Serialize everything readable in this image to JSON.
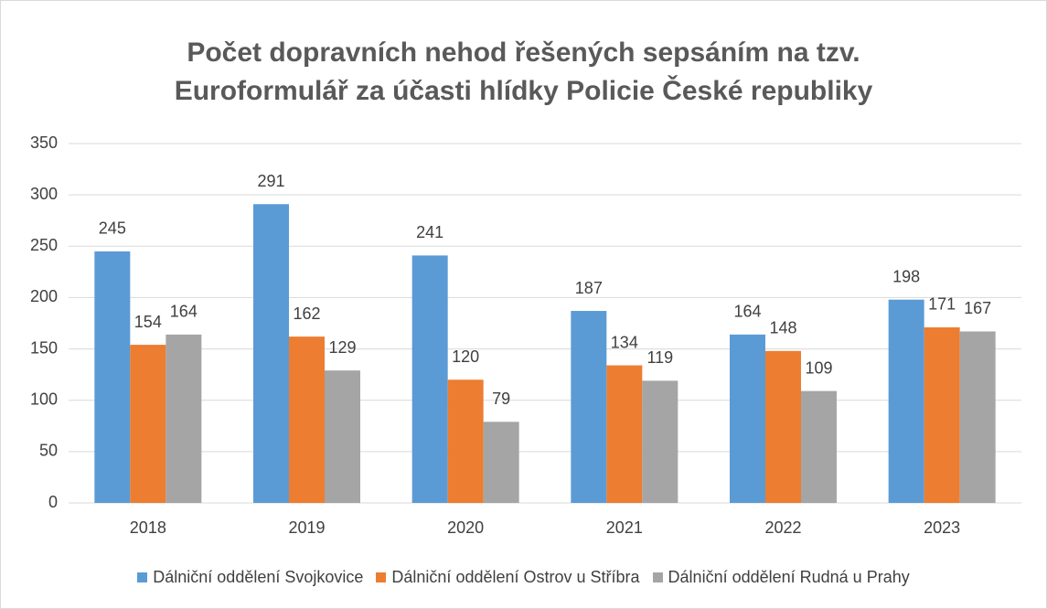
{
  "chart_data": {
    "type": "bar",
    "title": "Počet dopravních nehod řešených sepsáním na tzv. Euroformulář za účasti hlídky Policie České republiky",
    "categories": [
      "2018",
      "2019",
      "2020",
      "2021",
      "2022",
      "2023"
    ],
    "series": [
      {
        "name": "Dálniční oddělení Svojkovice",
        "color": "#5b9bd5",
        "values": [
          245,
          291,
          241,
          187,
          164,
          198
        ]
      },
      {
        "name": "Dálniční oddělení Ostrov u Stříbra",
        "color": "#ed7d31",
        "values": [
          154,
          162,
          120,
          134,
          148,
          171
        ]
      },
      {
        "name": "Dálniční oddělení Rudná u Prahy",
        "color": "#a5a5a5",
        "values": [
          164,
          129,
          79,
          119,
          109,
          167
        ]
      }
    ],
    "ylim": [
      0,
      350
    ],
    "yticks": [
      0,
      50,
      100,
      150,
      200,
      250,
      300,
      350
    ],
    "grid": true,
    "legend": "bottom"
  }
}
